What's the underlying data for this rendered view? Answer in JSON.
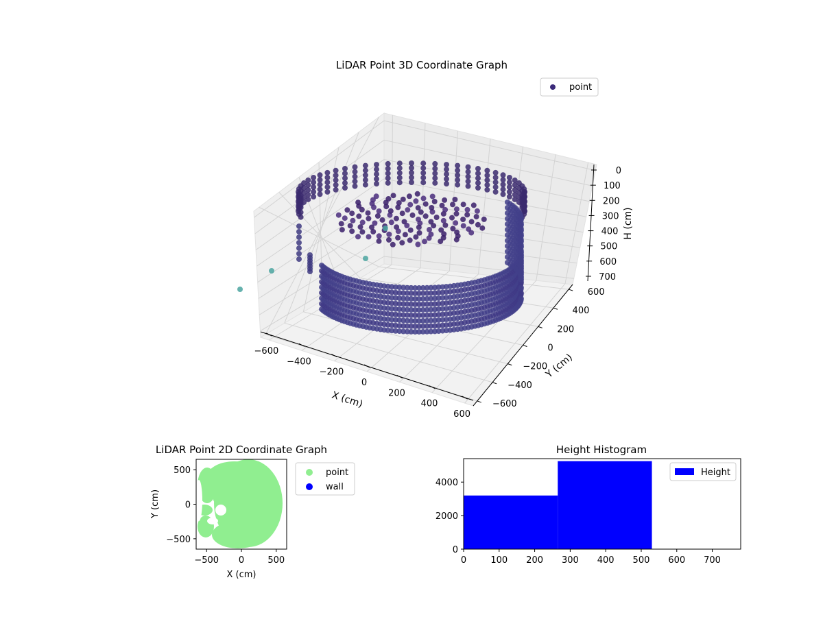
{
  "chart_data": [
    {
      "type": "scatter",
      "projection": "3d",
      "title": "LiDAR Point 3D Coordinate Graph",
      "xlabel": "X (cm)",
      "ylabel": "Y (cm)",
      "zlabel": "H (cm)",
      "xlim": [
        -600,
        600
      ],
      "ylim": [
        -600,
        600
      ],
      "zlim": [
        0,
        700
      ],
      "z_inverted": true,
      "xticks": [
        "−600",
        "−400",
        "−200",
        "0",
        "200",
        "400",
        "600"
      ],
      "yticks": [
        "−600",
        "−400",
        "−200",
        "0",
        "200",
        "400",
        "600"
      ],
      "zticks": [
        "0",
        "100",
        "200",
        "300",
        "400",
        "500",
        "600",
        "700"
      ],
      "legend": {
        "position": "top-right",
        "entries": [
          "point"
        ]
      },
      "grid": true,
      "series": [
        {
          "name": "point",
          "color": "#3b2a7a",
          "colormap": "viridis"
        }
      ]
    },
    {
      "type": "scatter",
      "title": "LiDAR Point 2D Coordinate Graph",
      "xlabel": "X (cm)",
      "ylabel": "Y (cm)",
      "xlim": [
        -650,
        650
      ],
      "ylim": [
        -650,
        650
      ],
      "xticks": [
        "−500",
        "0",
        "500"
      ],
      "yticks": [
        "500",
        "0",
        "−500"
      ],
      "legend": {
        "position": "outside-right",
        "entries": [
          "point",
          "wall"
        ]
      },
      "series": [
        {
          "name": "point",
          "color": "#90ee90"
        },
        {
          "name": "wall",
          "color": "#0000ff"
        }
      ]
    },
    {
      "type": "bar",
      "subtype": "histogram",
      "title": "Height Histogram",
      "xlim": [
        0,
        780
      ],
      "ylim": [
        0,
        5400
      ],
      "xticks": [
        "0",
        "100",
        "200",
        "300",
        "400",
        "500",
        "600",
        "700"
      ],
      "yticks": [
        "0",
        "2000",
        "4000"
      ],
      "legend": {
        "position": "top-right",
        "entries": [
          "Height"
        ]
      },
      "bins": [
        {
          "from": 0,
          "to": 265,
          "count": 3200
        },
        {
          "from": 265,
          "to": 530,
          "count": 5250
        },
        {
          "from": 530,
          "to": 780,
          "count": 0
        }
      ],
      "series": [
        {
          "name": "Height",
          "color": "#0000ff"
        }
      ]
    }
  ]
}
